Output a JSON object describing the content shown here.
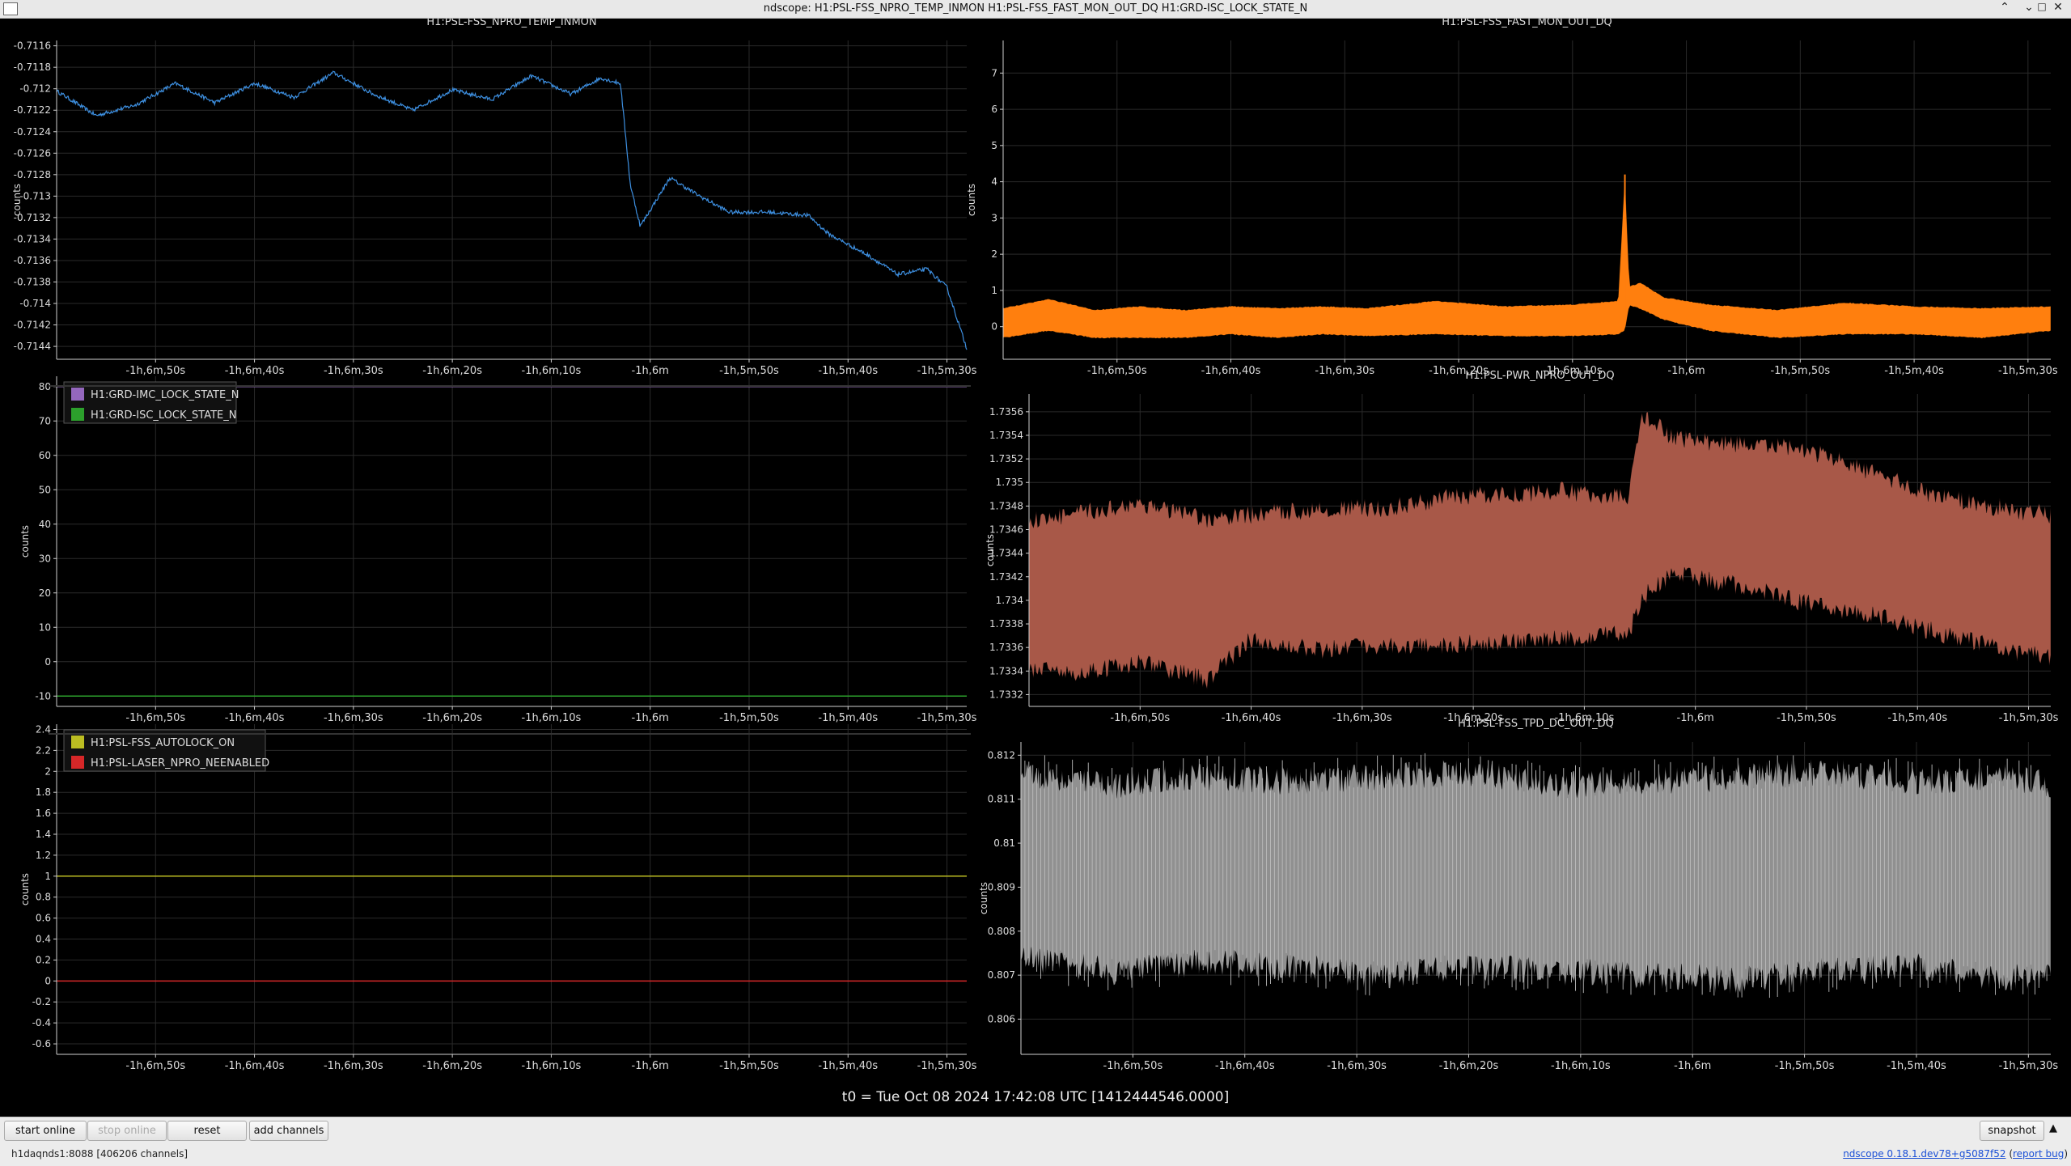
{
  "window": {
    "title": "ndscope: H1:PSL-FSS_NPRO_TEMP_INMON H1:PSL-FSS_FAST_MON_OUT_DQ H1:GRD-ISC_LOCK_STATE_N"
  },
  "time_ticks": [
    "-1h,6m,50s",
    "-1h,6m,40s",
    "-1h,6m,30s",
    "-1h,6m,20s",
    "-1h,6m,10s",
    "-1h,6m",
    "-1h,5m,50s",
    "-1h,5m,40s",
    "-1h,5m,30s"
  ],
  "chart_data": [
    {
      "id": "npro_temp",
      "type": "line",
      "title": "H1:PSL-FSS_NPRO_TEMP_INMON",
      "ylabel": "counts",
      "yticks": [
        -0.7144,
        -0.7142,
        -0.714,
        -0.7138,
        -0.7136,
        -0.7134,
        -0.7132,
        -0.713,
        -0.7128,
        -0.7126,
        -0.7124,
        -0.7122,
        -0.712,
        -0.7118,
        -0.7116
      ],
      "ylim": [
        -0.71452,
        -0.71155
      ],
      "xlim": [
        -4014,
        -3922
      ],
      "series": [
        {
          "color": "#3d8fe0",
          "noise": 1.8e-05,
          "points": [
            [
              -4014,
              -0.71202
            ],
            [
              -4010,
              -0.71225
            ],
            [
              -4006,
              -0.71215
            ],
            [
              -4002,
              -0.71195
            ],
            [
              -3998,
              -0.71213
            ],
            [
              -3994,
              -0.71195
            ],
            [
              -3990,
              -0.71208
            ],
            [
              -3986,
              -0.71185
            ],
            [
              -3982,
              -0.71205
            ],
            [
              -3978,
              -0.7122
            ],
            [
              -3974,
              -0.71201
            ],
            [
              -3970,
              -0.7121
            ],
            [
              -3966,
              -0.71188
            ],
            [
              -3962,
              -0.71205
            ],
            [
              -3959,
              -0.7119
            ],
            [
              -3957,
              -0.71195
            ],
            [
              -3956,
              -0.7129
            ],
            [
              -3955,
              -0.71328
            ],
            [
              -3952,
              -0.71283
            ],
            [
              -3949,
              -0.713
            ],
            [
              -3946,
              -0.71315
            ],
            [
              -3942,
              -0.71315
            ],
            [
              -3938,
              -0.71318
            ],
            [
              -3936,
              -0.71335
            ],
            [
              -3932,
              -0.71355
            ],
            [
              -3929,
              -0.71373
            ],
            [
              -3926,
              -0.71368
            ],
            [
              -3924,
              -0.71385
            ],
            [
              -3922,
              -0.71442
            ]
          ]
        }
      ]
    },
    {
      "id": "fast_mon",
      "type": "line",
      "title": "H1:PSL-FSS_FAST_MON_OUT_DQ",
      "ylabel": "counts",
      "yticks": [
        0,
        1,
        2,
        3,
        4,
        5,
        6,
        7
      ],
      "ylim": [
        -0.9,
        7.9
      ],
      "xlim": [
        -4014,
        -3922
      ],
      "series": [
        {
          "color": "#ff7f0e",
          "fill": "#ff7f0e",
          "points": [
            [
              -4014,
              -0.3,
              0.5
            ],
            [
              -4010,
              -0.1,
              0.75
            ],
            [
              -4006,
              -0.3,
              0.45
            ],
            [
              -4002,
              -0.3,
              0.55
            ],
            [
              -3998,
              -0.3,
              0.45
            ],
            [
              -3994,
              -0.2,
              0.55
            ],
            [
              -3990,
              -0.3,
              0.5
            ],
            [
              -3986,
              -0.2,
              0.55
            ],
            [
              -3982,
              -0.25,
              0.5
            ],
            [
              -3976,
              -0.2,
              0.7
            ],
            [
              -3970,
              -0.25,
              0.55
            ],
            [
              -3964,
              -0.25,
              0.6
            ],
            [
              -3960,
              -0.2,
              0.7
            ],
            [
              -3959.4,
              -0.1,
              4.2
            ],
            [
              -3959,
              0.6,
              1.1
            ],
            [
              -3958,
              0.5,
              1.2
            ],
            [
              -3956,
              0.2,
              0.8
            ],
            [
              -3952,
              -0.1,
              0.6
            ],
            [
              -3946,
              -0.3,
              0.45
            ],
            [
              -3940,
              -0.2,
              0.65
            ],
            [
              -3934,
              -0.2,
              0.55
            ],
            [
              -3928,
              -0.3,
              0.5
            ],
            [
              -3922,
              -0.1,
              0.55
            ]
          ]
        }
      ]
    },
    {
      "id": "guardian",
      "type": "line",
      "ylabel": "counts",
      "yticks": [
        -10,
        0,
        10,
        20,
        30,
        40,
        50,
        60,
        70,
        80
      ],
      "ylim": [
        -13,
        83
      ],
      "xlim": [
        -4014,
        -3922
      ],
      "legend": [
        "H1:GRD-IMC_LOCK_STATE_N",
        "H1:GRD-ISC_LOCK_STATE_N"
      ],
      "series": [
        {
          "name": "H1:GRD-IMC_LOCK_STATE_N",
          "color": "#9467bd",
          "values": [
            80
          ]
        },
        {
          "name": "H1:GRD-ISC_LOCK_STATE_N",
          "color": "#2ca02c",
          "values": [
            -10
          ]
        }
      ]
    },
    {
      "id": "autolock",
      "type": "line",
      "ylabel": "counts",
      "yticks": [
        -0.6,
        -0.4,
        -0.2,
        0,
        0.2,
        0.4,
        0.6,
        0.8,
        1,
        1.2,
        1.4,
        1.6,
        1.8,
        2,
        2.2,
        2.4
      ],
      "ylim": [
        -0.7,
        2.45
      ],
      "xlim": [
        -4014,
        -3922
      ],
      "legend": [
        "H1:PSL-FSS_AUTOLOCK_ON",
        "H1:PSL-LASER_NPRO_NEENABLED"
      ],
      "series": [
        {
          "name": "H1:PSL-FSS_AUTOLOCK_ON",
          "color": "#bcbd22",
          "values": [
            1
          ]
        },
        {
          "name": "H1:PSL-LASER_NPRO_NEENABLED",
          "color": "#d62728",
          "values": [
            0
          ]
        }
      ]
    },
    {
      "id": "pwr",
      "type": "area",
      "title": "H1:PSL-PWR_NPRO_OUT_DQ",
      "ylabel": "counts",
      "yticks": [
        1.7332,
        1.7334,
        1.7336,
        1.7338,
        1.734,
        1.7342,
        1.7344,
        1.7346,
        1.7348,
        1.735,
        1.7352,
        1.7354,
        1.7356
      ],
      "ylim": [
        1.7331,
        1.73575
      ],
      "xlim": [
        -4014,
        -3922
      ],
      "series": [
        {
          "color": "#a85848",
          "points": [
            [
              -4014,
              1.7335,
              1.7346
            ],
            [
              -4010,
              1.73345,
              1.73465
            ],
            [
              -4004,
              1.73355,
              1.73475
            ],
            [
              -3998,
              1.7334,
              1.7346
            ],
            [
              -3994,
              1.73375,
              1.73465
            ],
            [
              -3988,
              1.73365,
              1.7347
            ],
            [
              -3982,
              1.7337,
              1.7347
            ],
            [
              -3976,
              1.7337,
              1.7348
            ],
            [
              -3966,
              1.73375,
              1.73485
            ],
            [
              -3960,
              1.7338,
              1.7348
            ],
            [
              -3958.8,
              1.7341,
              1.7355
            ],
            [
              -3956,
              1.7343,
              1.7353
            ],
            [
              -3950,
              1.7342,
              1.73525
            ],
            [
              -3944,
              1.73405,
              1.7352
            ],
            [
              -3938,
              1.73395,
              1.735
            ],
            [
              -3932,
              1.7338,
              1.7348
            ],
            [
              -3926,
              1.73365,
              1.7347
            ],
            [
              -3922,
              1.7336,
              1.73465
            ]
          ]
        }
      ]
    },
    {
      "id": "tpd",
      "type": "area",
      "title": "H1:PSL-FSS_TPD_DC_OUT_DQ",
      "ylabel": "counts",
      "yticks": [
        0.806,
        0.807,
        0.808,
        0.809,
        0.81,
        0.811,
        0.812
      ],
      "ylim": [
        0.8052,
        0.8123
      ],
      "xlim": [
        -4014,
        -3922
      ],
      "series": [
        {
          "color": "#909090",
          "points": [
            [
              -4014,
              0.8077,
              0.8113
            ],
            [
              -4006,
              0.8074,
              0.811
            ],
            [
              -3998,
              0.8076,
              0.8112
            ],
            [
              -3990,
              0.8075,
              0.8111
            ],
            [
              -3982,
              0.8073,
              0.8112
            ],
            [
              -3974,
              0.8075,
              0.8113
            ],
            [
              -3966,
              0.8074,
              0.811
            ],
            [
              -3958,
              0.8073,
              0.8111
            ],
            [
              -3950,
              0.8072,
              0.8112
            ],
            [
              -3942,
              0.8074,
              0.8113
            ],
            [
              -3934,
              0.8075,
              0.8111
            ],
            [
              -3926,
              0.8072,
              0.8112
            ],
            [
              -3922,
              0.8074,
              0.811
            ]
          ]
        }
      ]
    }
  ],
  "t0_label": "t0 = Tue Oct 08 2024 17:42:08 UTC [1412444546.0000]",
  "buttons": {
    "start_online": "start online",
    "stop_online": "stop online",
    "reset": "reset",
    "add_channels": "add channels",
    "snapshot": "snapshot"
  },
  "status": {
    "server": "h1daqnds1:8088  [406206 channels]",
    "version": "ndscope 0.18.1.dev78+g5087f52",
    "report": "report bug"
  }
}
